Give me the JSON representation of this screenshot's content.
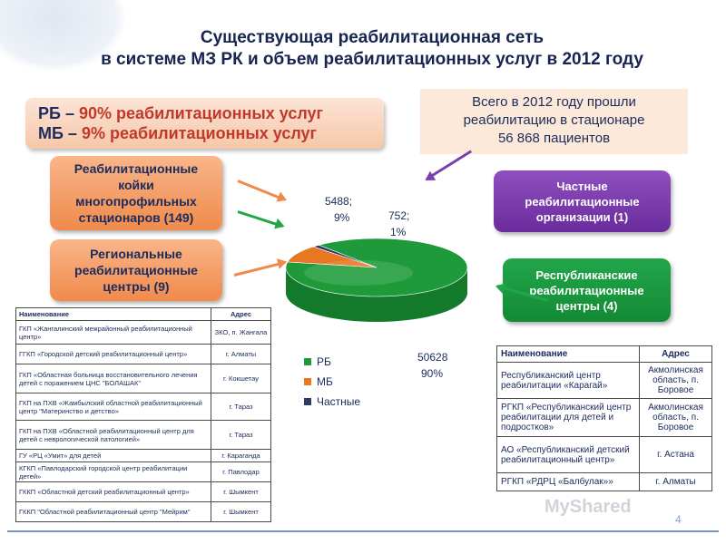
{
  "title": {
    "line1": "Существующая  реабилитационная сеть",
    "line2": "в системе МЗ РК и объем реабилитационных услуг в 2012 году"
  },
  "share": {
    "rb_prefix": "РБ – ",
    "rb_text": "90% реабилитационных услуг",
    "mb_prefix": "МБ –  ",
    "mb_text": " 9% реабилитационных услуг"
  },
  "total": {
    "line1": "Всего в 2012 году прошли",
    "line2": "реабилитацию в стационаре",
    "line3": "56 868  пациентов"
  },
  "boxes": {
    "beds": [
      "Реабилитационные",
      "койки",
      "многопрофильных",
      "стационаров (149)"
    ],
    "regional": [
      "Региональные",
      "реабилитационные",
      "центры (9)"
    ],
    "private": [
      "Частные",
      "реабилитационные",
      "организации (1)"
    ],
    "republican": [
      "Республиканские",
      "реабилитационные",
      "центры (4)"
    ]
  },
  "colors": {
    "rb": "#1e9a3a",
    "mb": "#e87722",
    "private": "#2e3a6a",
    "arrow_orange": "#f08a4b",
    "arrow_green": "#22a64a",
    "arrow_purple": "#7b3fb0"
  },
  "chart_data": {
    "type": "pie",
    "categories": [
      "РБ",
      "МБ",
      "Частные"
    ],
    "values": [
      50628,
      5488,
      752
    ],
    "percents": [
      90,
      9,
      1
    ],
    "data_labels": {
      "rb": [
        "50628",
        "90%"
      ],
      "mb": [
        "5488;",
        "9%"
      ],
      "private": [
        "752;",
        "1%"
      ]
    },
    "legend": [
      "РБ",
      "МБ",
      "Частные"
    ],
    "legend_position": "bottom-left"
  },
  "left_table": {
    "headers": [
      "Наименование",
      "Адрес"
    ],
    "rows": [
      [
        "ГКП «Жангалинский межрайонный реабилитационный центр»",
        "ЗКО, п. Жангала"
      ],
      [
        "ГГКП «Городской детский реабилитационный центр»",
        "г. Алматы"
      ],
      [
        "ГКП «Областная больница восстановительного лечения детей с поражением ЦНС \"БОЛАШАК\"",
        "г. Кокшетау"
      ],
      [
        "ГКП на ПХВ «Жамбылский областной реабилитационный центр \"Материнство и детство»",
        "г. Тараз"
      ],
      [
        "ГКП  на ПХВ «Областной реабилитационный центр для детей с неврологической патологией»",
        "г. Тараз"
      ],
      [
        "ГУ «РЦ «Умит» для детей",
        "г. Караганда"
      ],
      [
        "КГКП «Павлодарский городской центр реабилитации детей»",
        "г. Павлодар"
      ],
      [
        "ГККП «Областной детский реабилитационный центр»",
        "г. Шымкент"
      ],
      [
        "ГККП \"Областной реабилитационный центр \"Мейрим\"",
        "г. Шымкент"
      ]
    ]
  },
  "right_table": {
    "headers": [
      "Наименование",
      "Адрес"
    ],
    "rows": [
      [
        "Республиканский центр реабилитации «Карагай»",
        "Акмолинская область, п. Боровое"
      ],
      [
        "РГКП «Республиканский центр реабилитации для детей и подростков»",
        "Акмолинская область, п. Боровое"
      ],
      [
        "АО «Республиканский детский реабилитационный центр»",
        "г. Астана"
      ],
      [
        "РГКП «РДРЦ «Балбулак»»",
        "г. Алматы"
      ]
    ]
  },
  "page_number": "4",
  "watermark": "MyShared"
}
